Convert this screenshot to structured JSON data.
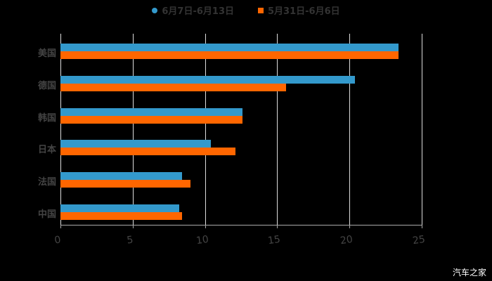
{
  "chart_data": {
    "type": "bar",
    "orientation": "horizontal",
    "title": "",
    "categories": [
      "美国",
      "德国",
      "韩国",
      "日本",
      "法国",
      "中国"
    ],
    "series": [
      {
        "name": "6月7日-6月13日",
        "color": "#3399cc",
        "values": [
          23.4,
          20.4,
          12.6,
          10.4,
          8.4,
          8.2
        ]
      },
      {
        "name": "5月31日-6月6日",
        "color": "#ff6600",
        "values": [
          23.4,
          15.6,
          12.6,
          12.1,
          9.0,
          8.4
        ]
      }
    ],
    "xlabel": "",
    "ylabel": "",
    "xlim": [
      0,
      25
    ],
    "xticks": [
      "0",
      "5",
      "10",
      "15",
      "20",
      "25"
    ],
    "grid": true,
    "legend_position": "top"
  },
  "legend": {
    "s1": "6月7日-6月13日",
    "s2": "5月31日-6月6日"
  },
  "watermark": "汽车之家"
}
